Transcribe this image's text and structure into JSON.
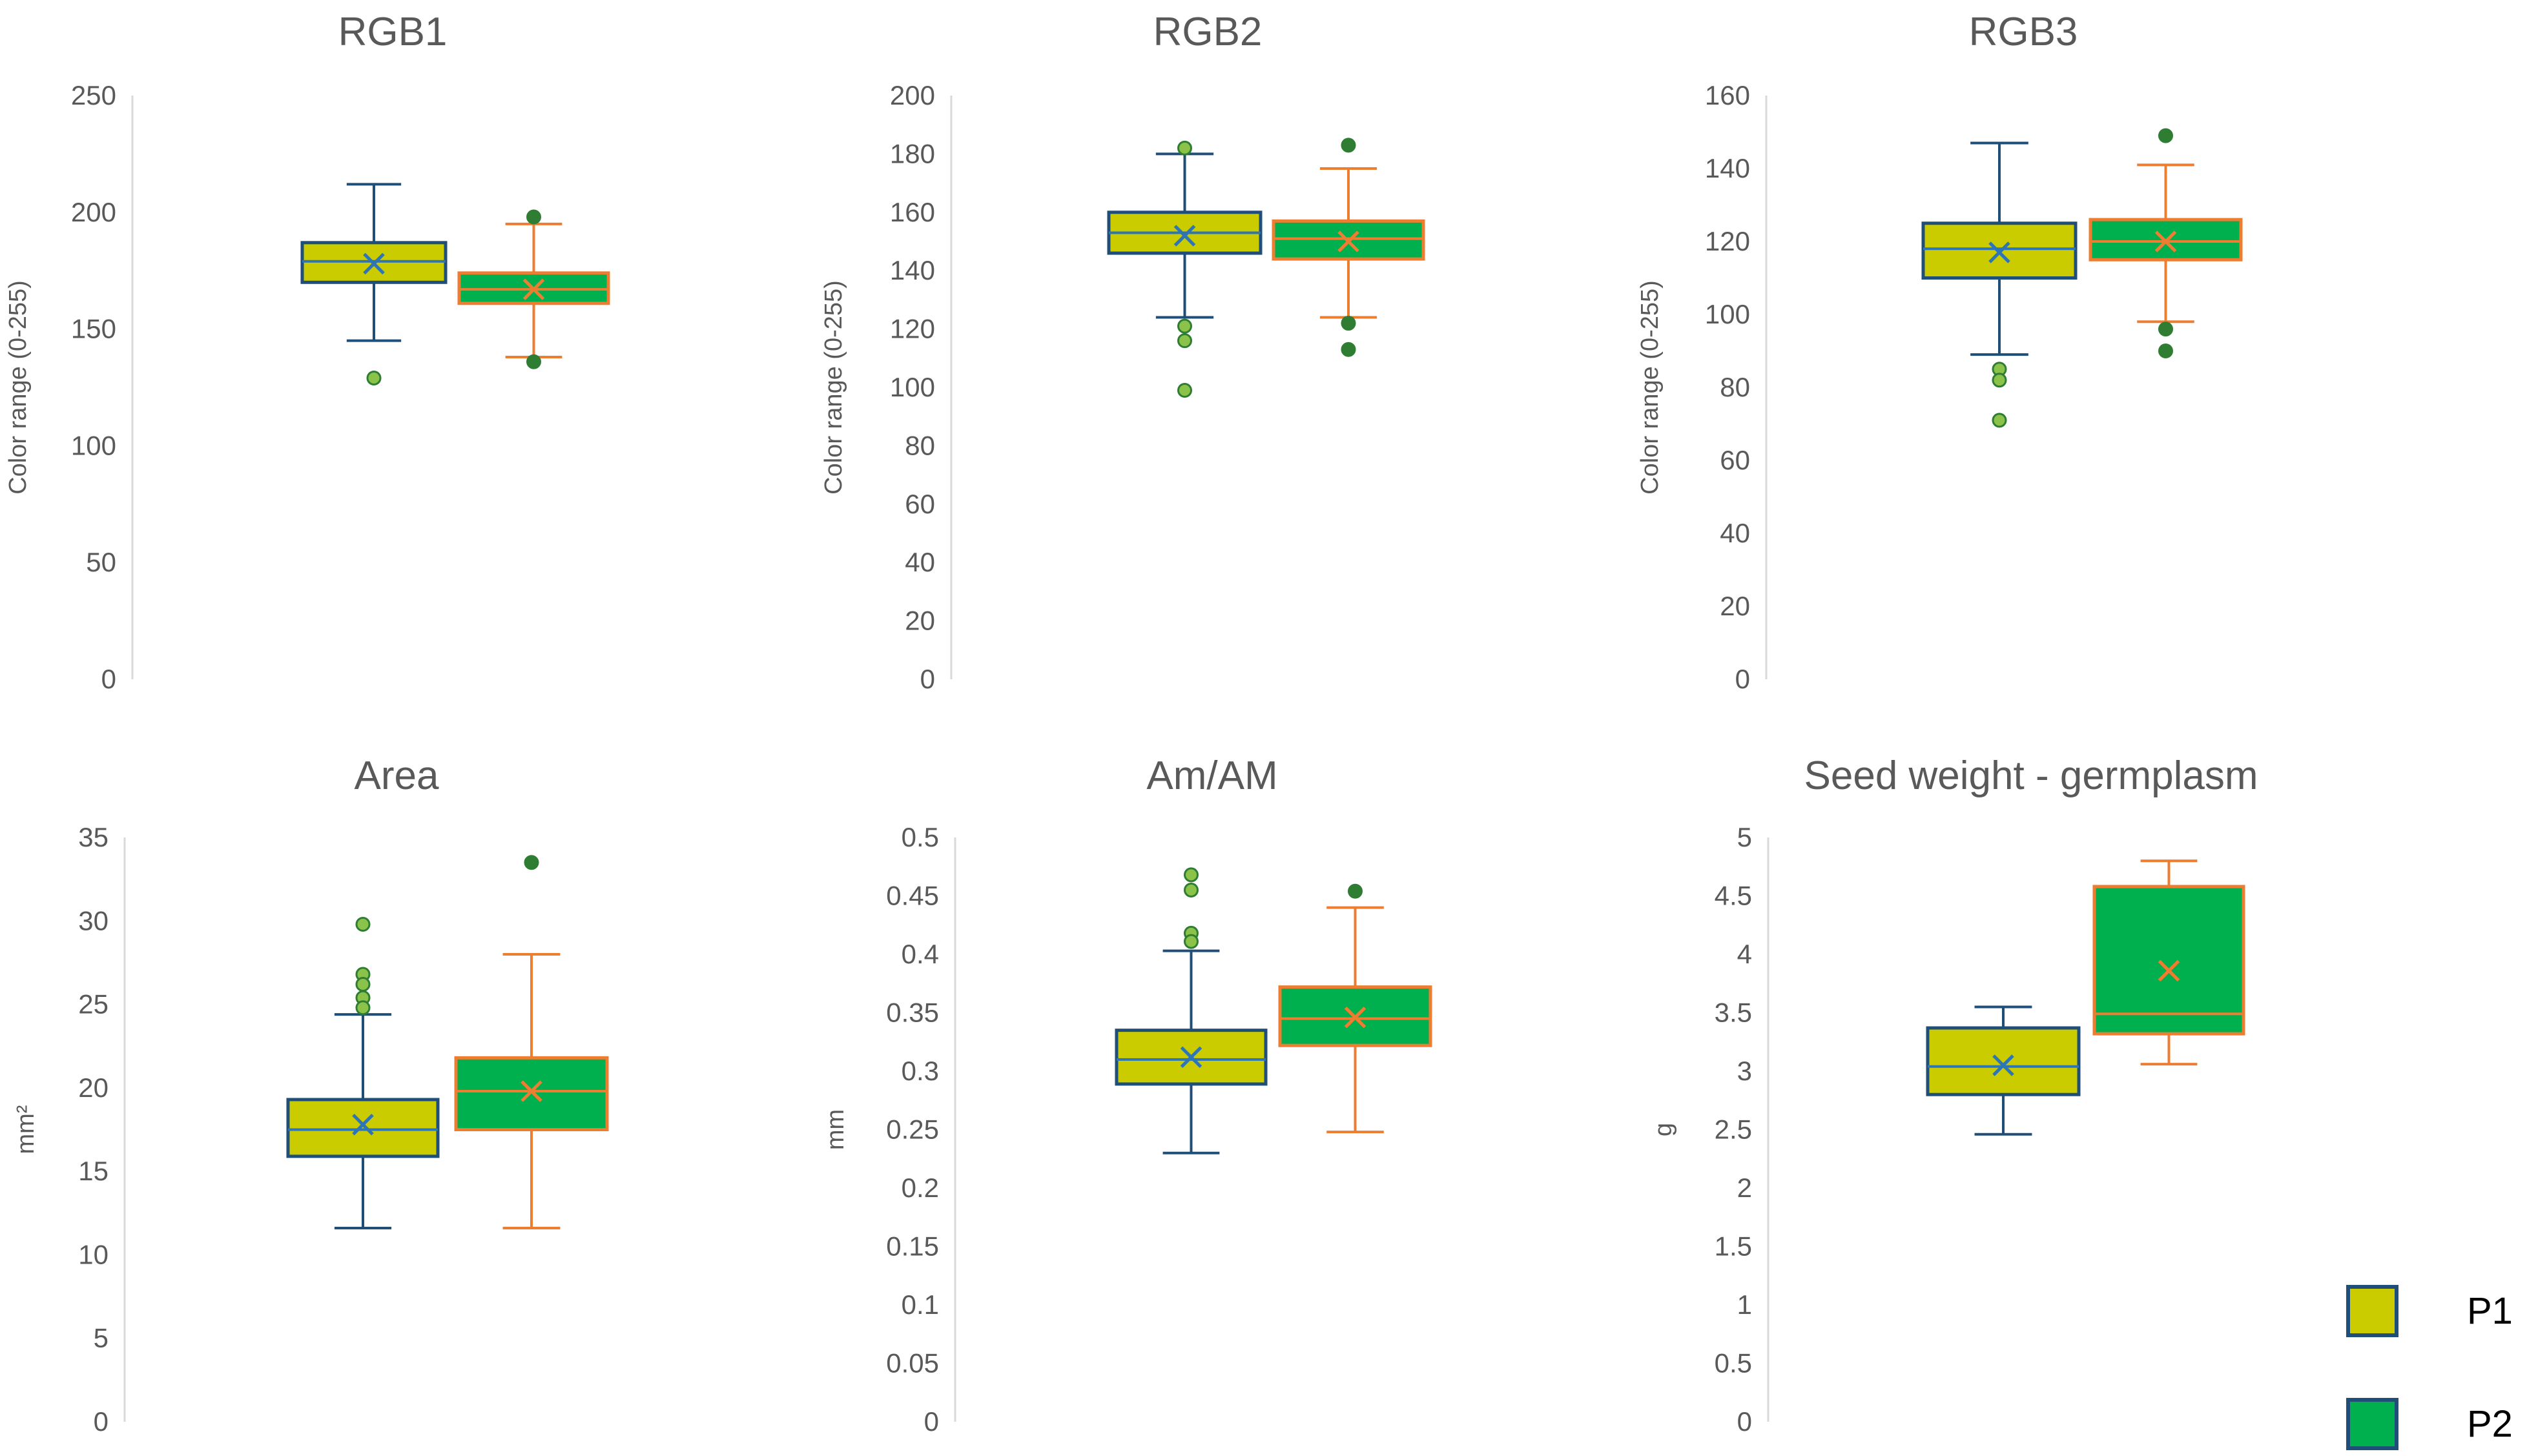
{
  "chart_data": [
    {
      "type": "boxplot",
      "title": "RGB1",
      "ylabel": "Color range (0-255)",
      "ylim": [
        0,
        250
      ],
      "ticks": [
        "0",
        "50",
        "100",
        "150",
        "200",
        "250"
      ],
      "series": [
        {
          "name": "P1",
          "min": 145,
          "q1": 170,
          "median": 179,
          "q3": 187,
          "max": 212,
          "mean": 178,
          "outliers": [
            129
          ]
        },
        {
          "name": "P2",
          "min": 138,
          "q1": 161,
          "median": 167,
          "q3": 174,
          "max": 195,
          "mean": 167,
          "outliers": [
            198,
            136
          ]
        }
      ]
    },
    {
      "type": "boxplot",
      "title": "RGB2",
      "ylabel": "Color range (0-255)",
      "ylim": [
        0,
        200
      ],
      "ticks": [
        "0",
        "20",
        "40",
        "60",
        "80",
        "100",
        "120",
        "140",
        "160",
        "180",
        "200"
      ],
      "series": [
        {
          "name": "P1",
          "min": 124,
          "q1": 146,
          "median": 153,
          "q3": 160,
          "max": 180,
          "mean": 152,
          "outliers": [
            182,
            121,
            116,
            99
          ]
        },
        {
          "name": "P2",
          "min": 124,
          "q1": 144,
          "median": 151,
          "q3": 157,
          "max": 175,
          "mean": 150,
          "outliers": [
            183,
            122,
            113
          ]
        }
      ]
    },
    {
      "type": "boxplot",
      "title": "RGB3",
      "ylabel": "Color range (0-255)",
      "ylim": [
        0,
        160
      ],
      "ticks": [
        "0",
        "20",
        "40",
        "60",
        "80",
        "100",
        "120",
        "140",
        "160"
      ],
      "series": [
        {
          "name": "P1",
          "min": 89,
          "q1": 110,
          "median": 118,
          "q3": 125,
          "max": 147,
          "mean": 117,
          "outliers": [
            85,
            82,
            71
          ]
        },
        {
          "name": "P2",
          "min": 98,
          "q1": 115,
          "median": 120,
          "q3": 126,
          "max": 141,
          "mean": 120,
          "outliers": [
            149,
            96,
            90
          ]
        }
      ]
    },
    {
      "type": "boxplot",
      "title": "Area",
      "ylabel": "mm²",
      "ylim": [
        0,
        35
      ],
      "ticks": [
        "0",
        "5",
        "10",
        "15",
        "20",
        "25",
        "30",
        "35"
      ],
      "series": [
        {
          "name": "P1",
          "min": 11.6,
          "q1": 15.9,
          "median": 17.5,
          "q3": 19.3,
          "max": 24.4,
          "mean": 17.8,
          "outliers": [
            29.8,
            26.8,
            26.2,
            25.4,
            24.8
          ]
        },
        {
          "name": "P2",
          "min": 11.6,
          "q1": 17.5,
          "median": 19.8,
          "q3": 21.8,
          "max": 28.0,
          "mean": 19.8,
          "outliers": [
            33.5
          ]
        }
      ]
    },
    {
      "type": "boxplot",
      "title": "Am/AM",
      "ylabel": "mm",
      "ylim": [
        0,
        0.5
      ],
      "ticks": [
        "0",
        "0.05",
        "0.1",
        "0.15",
        "0.2",
        "0.25",
        "0.3",
        "0.35",
        "0.4",
        "0.45",
        "0.5"
      ],
      "series": [
        {
          "name": "P1",
          "min": 0.23,
          "q1": 0.289,
          "median": 0.31,
          "q3": 0.335,
          "max": 0.403,
          "mean": 0.312,
          "outliers": [
            0.468,
            0.455,
            0.418,
            0.411
          ]
        },
        {
          "name": "P2",
          "min": 0.248,
          "q1": 0.322,
          "median": 0.345,
          "q3": 0.372,
          "max": 0.44,
          "mean": 0.346,
          "outliers": [
            0.454
          ]
        }
      ]
    },
    {
      "type": "boxplot",
      "title": "Seed weight - germplasm",
      "ylabel": "g",
      "ylim": [
        0,
        5
      ],
      "ticks": [
        "0",
        "0.5",
        "1",
        "1.5",
        "2",
        "2.5",
        "3",
        "3.5",
        "4",
        "4.5",
        "5"
      ],
      "series": [
        {
          "name": "P1",
          "min": 2.46,
          "q1": 2.8,
          "median": 3.04,
          "q3": 3.37,
          "max": 3.55,
          "mean": 3.05,
          "outliers": []
        },
        {
          "name": "P2",
          "min": 3.06,
          "q1": 3.32,
          "median": 3.49,
          "q3": 4.58,
          "max": 4.8,
          "mean": 3.86,
          "outliers": []
        }
      ]
    }
  ],
  "legend": [
    {
      "name": "P1",
      "label": "P1",
      "color": "#CBCC00"
    },
    {
      "name": "P2",
      "label": "P2",
      "color": "#00B04F"
    }
  ],
  "colors": {
    "p1_fill": "#CBCC00",
    "p1_stroke": "#1F4E79",
    "p1_median": "#2E75B6",
    "p2_fill": "#00B04F",
    "p2_stroke": "#ED7D31",
    "outlier_fill": "#8BC34A",
    "outlier_stroke": "#2E7D32",
    "text": "#595959",
    "axis": "#D9D9D9"
  }
}
